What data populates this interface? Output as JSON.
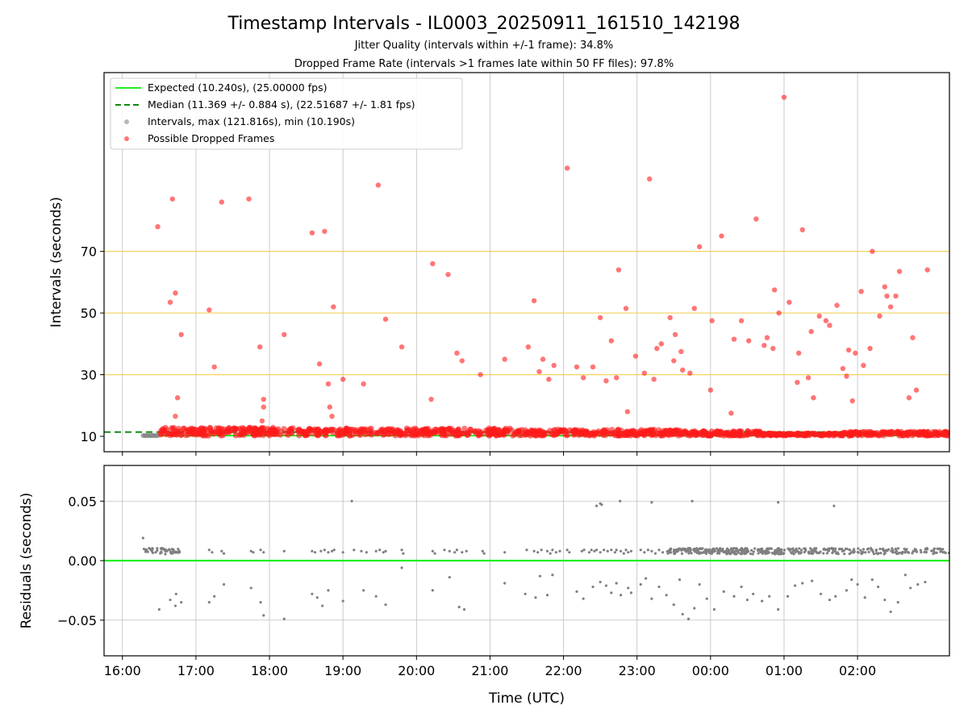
{
  "figure": {
    "title": "Timestamp Intervals - IL0003_20250911_161510_142198",
    "subtitle1": "Jitter Quality (intervals within +/-1 frame): 34.8%",
    "subtitle2": "Dropped Frame Rate (intervals >1 frames late within 50 FF files): 97.8%"
  },
  "chart_data": [
    {
      "type": "scatter",
      "ylabel": "Intervals (seconds)",
      "xlabel": "",
      "x_unit": "hours since 16:00 UTC (2025-09-11)",
      "xlim": [
        -0.25,
        11.25
      ],
      "ylim": [
        5,
        128
      ],
      "yticks": [
        10,
        30,
        50,
        70
      ],
      "highlight_lines": [
        30,
        50,
        70
      ],
      "highlight_color": "#f5c842",
      "grid": true,
      "legend_position": "top-left",
      "legend": [
        "Expected (10.240s), (25.00000 fps)",
        "Median (11.369 +/- 0.884 s), (22.51687 +/- 1.81 fps)",
        "Intervals, max (121.816s), min (10.190s)",
        "Possible Dropped Frames"
      ],
      "expected": 10.24,
      "median": 11.369,
      "colors": {
        "expected": "#22ee22",
        "median": "#118811",
        "interval": "#888888",
        "dropped": "#ff1a1a"
      },
      "band": {
        "segments": [
          {
            "x": [
              0.5,
              2.45
            ],
            "y": 12.0
          },
          {
            "x": [
              2.45,
              5.3
            ],
            "y": 11.8
          },
          {
            "x": [
              5.3,
              7.6
            ],
            "y": 11.4
          },
          {
            "x": [
              7.6,
              8.7
            ],
            "y": 10.9
          },
          {
            "x": [
              8.7,
              9.8
            ],
            "y": 10.2
          },
          {
            "x": [
              9.8,
              11.25
            ],
            "y": 10.7
          }
        ]
      },
      "dropped_points": [
        [
          0.48,
          78.0
        ],
        [
          0.65,
          53.5
        ],
        [
          0.68,
          87.0
        ],
        [
          0.72,
          56.5
        ],
        [
          0.72,
          16.5
        ],
        [
          0.75,
          22.5
        ],
        [
          0.8,
          43.0
        ],
        [
          1.18,
          51.0
        ],
        [
          1.25,
          32.5
        ],
        [
          1.35,
          86.0
        ],
        [
          1.72,
          87.0
        ],
        [
          1.87,
          39.0
        ],
        [
          1.9,
          15.0
        ],
        [
          1.92,
          22.0
        ],
        [
          1.92,
          19.5
        ],
        [
          2.2,
          43.0
        ],
        [
          2.58,
          76.0
        ],
        [
          2.68,
          33.5
        ],
        [
          2.75,
          76.5
        ],
        [
          2.8,
          27.0
        ],
        [
          2.82,
          19.5
        ],
        [
          2.85,
          16.5
        ],
        [
          2.87,
          52.0
        ],
        [
          3.0,
          28.5
        ],
        [
          3.28,
          27.0
        ],
        [
          3.48,
          91.5
        ],
        [
          3.58,
          48.0
        ],
        [
          3.8,
          39.0
        ],
        [
          4.2,
          22.0
        ],
        [
          4.22,
          66.0
        ],
        [
          4.43,
          62.5
        ],
        [
          4.55,
          37.0
        ],
        [
          4.62,
          34.5
        ],
        [
          4.87,
          30.0
        ],
        [
          5.2,
          35.0
        ],
        [
          5.52,
          39.0
        ],
        [
          5.6,
          54.0
        ],
        [
          5.67,
          31.0
        ],
        [
          5.72,
          35.0
        ],
        [
          5.8,
          28.5
        ],
        [
          5.87,
          33.0
        ],
        [
          6.05,
          97.0
        ],
        [
          6.18,
          32.5
        ],
        [
          6.27,
          29.0
        ],
        [
          6.4,
          32.5
        ],
        [
          6.5,
          48.5
        ],
        [
          6.58,
          28.0
        ],
        [
          6.65,
          41.0
        ],
        [
          6.72,
          29.0
        ],
        [
          6.75,
          64.0
        ],
        [
          6.85,
          51.5
        ],
        [
          6.87,
          18.0
        ],
        [
          6.98,
          36.0
        ],
        [
          7.1,
          30.5
        ],
        [
          7.17,
          93.5
        ],
        [
          7.23,
          28.5
        ],
        [
          7.27,
          38.5
        ],
        [
          7.33,
          40.0
        ],
        [
          7.45,
          48.5
        ],
        [
          7.5,
          34.5
        ],
        [
          7.52,
          43.0
        ],
        [
          7.6,
          37.5
        ],
        [
          7.62,
          31.5
        ],
        [
          7.72,
          30.5
        ],
        [
          7.78,
          51.5
        ],
        [
          7.85,
          71.5
        ],
        [
          8.0,
          25.0
        ],
        [
          8.02,
          47.5
        ],
        [
          8.15,
          75.0
        ],
        [
          8.28,
          17.5
        ],
        [
          8.32,
          41.5
        ],
        [
          8.42,
          47.5
        ],
        [
          8.52,
          41.0
        ],
        [
          8.62,
          80.5
        ],
        [
          8.73,
          39.5
        ],
        [
          8.77,
          42.0
        ],
        [
          8.85,
          38.5
        ],
        [
          8.87,
          57.5
        ],
        [
          8.93,
          50.0
        ],
        [
          9.0,
          120.0
        ],
        [
          9.07,
          53.5
        ],
        [
          9.18,
          27.5
        ],
        [
          9.2,
          37.0
        ],
        [
          9.25,
          77.0
        ],
        [
          9.33,
          29.0
        ],
        [
          9.37,
          44.0
        ],
        [
          9.4,
          22.5
        ],
        [
          9.48,
          49.0
        ],
        [
          9.57,
          47.5
        ],
        [
          9.62,
          46.0
        ],
        [
          9.72,
          52.5
        ],
        [
          9.8,
          32.0
        ],
        [
          9.85,
          29.5
        ],
        [
          9.88,
          38.0
        ],
        [
          9.93,
          21.5
        ],
        [
          9.97,
          37.0
        ],
        [
          10.05,
          57.0
        ],
        [
          10.08,
          33.0
        ],
        [
          10.17,
          38.5
        ],
        [
          10.2,
          70.0
        ],
        [
          10.3,
          49.0
        ],
        [
          10.37,
          58.5
        ],
        [
          10.4,
          55.5
        ],
        [
          10.45,
          52.0
        ],
        [
          10.52,
          55.5
        ],
        [
          10.57,
          63.5
        ],
        [
          10.7,
          22.5
        ],
        [
          10.75,
          42.0
        ],
        [
          10.8,
          25.0
        ],
        [
          10.95,
          64.0
        ]
      ]
    },
    {
      "type": "scatter",
      "ylabel": "Residuals (seconds)",
      "xlabel": "Time (UTC)",
      "xlim": [
        -0.25,
        11.25
      ],
      "ylim": [
        -0.08,
        0.08
      ],
      "yticks": [
        0.05,
        0.0,
        -0.05
      ],
      "ytick_labels": [
        "0.05",
        "0.00",
        "−0.05"
      ],
      "xticks": [
        0,
        1,
        2,
        3,
        4,
        5,
        6,
        7,
        8,
        9,
        10
      ],
      "xtick_labels": [
        "16:00",
        "17:00",
        "18:00",
        "19:00",
        "20:00",
        "21:00",
        "22:00",
        "23:00",
        "00:00",
        "01:00",
        "02:00"
      ],
      "zero_line": 0.0,
      "grid": true,
      "dense_clusters": [
        {
          "x": [
            0.28,
            0.78
          ],
          "y": 0.008,
          "count": 55
        },
        {
          "x": [
            7.4,
            9.0
          ],
          "y": 0.008,
          "count": 260
        },
        {
          "x": [
            9.0,
            11.25
          ],
          "y": 0.008,
          "count": 180
        }
      ],
      "sparse_high": [
        [
          1.18,
          0.009
        ],
        [
          1.22,
          0.007
        ],
        [
          1.35,
          0.008
        ],
        [
          1.38,
          0.006
        ],
        [
          1.75,
          0.008
        ],
        [
          1.78,
          0.007
        ],
        [
          1.88,
          0.009
        ],
        [
          1.92,
          0.007
        ],
        [
          2.2,
          0.008
        ],
        [
          2.58,
          0.008
        ],
        [
          2.62,
          0.007
        ],
        [
          2.7,
          0.008
        ],
        [
          2.75,
          0.009
        ],
        [
          2.8,
          0.007
        ],
        [
          2.85,
          0.008
        ],
        [
          2.88,
          0.009
        ],
        [
          3.0,
          0.007
        ],
        [
          3.15,
          0.009
        ],
        [
          3.25,
          0.008
        ],
        [
          3.32,
          0.007
        ],
        [
          3.45,
          0.008
        ],
        [
          3.5,
          0.009
        ],
        [
          3.55,
          0.007
        ],
        [
          3.58,
          0.008
        ],
        [
          3.8,
          0.009
        ],
        [
          3.82,
          0.006
        ],
        [
          4.22,
          0.008
        ],
        [
          4.25,
          0.006
        ],
        [
          4.38,
          0.009
        ],
        [
          4.45,
          0.008
        ],
        [
          4.52,
          0.007
        ],
        [
          4.55,
          0.009
        ],
        [
          4.62,
          0.007
        ],
        [
          4.68,
          0.008
        ],
        [
          4.9,
          0.008
        ],
        [
          4.92,
          0.006
        ],
        [
          5.2,
          0.007
        ],
        [
          5.5,
          0.009
        ],
        [
          5.6,
          0.008
        ],
        [
          5.65,
          0.007
        ],
        [
          5.7,
          0.009
        ],
        [
          5.78,
          0.008
        ],
        [
          5.82,
          0.006
        ],
        [
          5.85,
          0.009
        ],
        [
          5.9,
          0.007
        ],
        [
          5.95,
          0.008
        ],
        [
          6.05,
          0.009
        ],
        [
          6.08,
          0.007
        ],
        [
          6.25,
          0.008
        ],
        [
          6.28,
          0.009
        ],
        [
          6.35,
          0.007
        ],
        [
          6.38,
          0.009
        ],
        [
          6.42,
          0.008
        ],
        [
          6.45,
          0.009
        ],
        [
          6.5,
          0.007
        ],
        [
          6.55,
          0.009
        ],
        [
          6.6,
          0.008
        ],
        [
          6.65,
          0.009
        ],
        [
          6.7,
          0.007
        ],
        [
          6.72,
          0.009
        ],
        [
          6.78,
          0.008
        ],
        [
          6.82,
          0.006
        ],
        [
          6.85,
          0.009
        ],
        [
          6.88,
          0.007
        ],
        [
          6.92,
          0.008
        ],
        [
          7.05,
          0.009
        ],
        [
          7.1,
          0.007
        ],
        [
          7.15,
          0.009
        ],
        [
          7.2,
          0.008
        ],
        [
          7.25,
          0.006
        ],
        [
          7.3,
          0.009
        ],
        [
          7.35,
          0.007
        ]
      ],
      "sparse_low": [
        [
          0.28,
          0.019
        ],
        [
          0.5,
          -0.041
        ],
        [
          0.65,
          -0.033
        ],
        [
          0.72,
          -0.038
        ],
        [
          0.73,
          -0.028
        ],
        [
          0.8,
          -0.035
        ],
        [
          1.18,
          -0.035
        ],
        [
          1.25,
          -0.03
        ],
        [
          1.38,
          -0.02
        ],
        [
          1.75,
          -0.023
        ],
        [
          1.88,
          -0.035
        ],
        [
          1.92,
          -0.046
        ],
        [
          2.2,
          -0.049
        ],
        [
          2.58,
          -0.028
        ],
        [
          2.65,
          -0.031
        ],
        [
          2.72,
          -0.038
        ],
        [
          2.8,
          -0.025
        ],
        [
          3.0,
          -0.034
        ],
        [
          3.28,
          -0.025
        ],
        [
          3.45,
          -0.03
        ],
        [
          3.58,
          -0.037
        ],
        [
          3.8,
          -0.006
        ],
        [
          4.22,
          -0.025
        ],
        [
          4.45,
          -0.014
        ],
        [
          4.58,
          -0.039
        ],
        [
          4.65,
          -0.041
        ],
        [
          5.2,
          -0.019
        ],
        [
          5.48,
          -0.028
        ],
        [
          5.62,
          -0.031
        ],
        [
          5.68,
          -0.013
        ],
        [
          5.78,
          -0.029
        ],
        [
          5.85,
          -0.012
        ],
        [
          6.18,
          -0.026
        ],
        [
          6.27,
          -0.032
        ],
        [
          6.4,
          -0.022
        ],
        [
          6.5,
          -0.018
        ],
        [
          6.58,
          -0.021
        ],
        [
          6.65,
          -0.027
        ],
        [
          6.72,
          -0.019
        ],
        [
          6.78,
          -0.029
        ],
        [
          6.88,
          -0.023
        ],
        [
          6.92,
          -0.027
        ],
        [
          7.05,
          -0.02
        ],
        [
          7.12,
          -0.015
        ],
        [
          7.2,
          -0.032
        ],
        [
          7.3,
          -0.022
        ],
        [
          7.4,
          -0.029
        ],
        [
          7.5,
          -0.037
        ],
        [
          7.58,
          -0.016
        ],
        [
          7.62,
          -0.045
        ],
        [
          7.7,
          -0.049
        ],
        [
          7.78,
          -0.04
        ],
        [
          7.85,
          -0.02
        ],
        [
          7.95,
          -0.032
        ],
        [
          8.05,
          -0.041
        ],
        [
          8.18,
          -0.026
        ],
        [
          8.32,
          -0.03
        ],
        [
          8.42,
          -0.022
        ],
        [
          8.5,
          -0.033
        ],
        [
          8.58,
          -0.028
        ],
        [
          8.7,
          -0.034
        ],
        [
          8.8,
          -0.03
        ],
        [
          8.92,
          -0.041
        ],
        [
          9.05,
          -0.03
        ],
        [
          9.15,
          -0.021
        ],
        [
          9.25,
          -0.019
        ],
        [
          9.38,
          -0.017
        ],
        [
          9.5,
          -0.028
        ],
        [
          9.62,
          -0.033
        ],
        [
          9.7,
          -0.03
        ],
        [
          9.85,
          -0.025
        ],
        [
          9.92,
          -0.016
        ],
        [
          10.0,
          -0.02
        ],
        [
          10.1,
          -0.031
        ],
        [
          10.2,
          -0.016
        ],
        [
          10.28,
          -0.022
        ],
        [
          10.37,
          -0.033
        ],
        [
          10.45,
          -0.043
        ],
        [
          10.55,
          -0.035
        ],
        [
          10.65,
          -0.012
        ],
        [
          10.72,
          -0.023
        ],
        [
          10.82,
          -0.02
        ],
        [
          10.92,
          -0.018
        ],
        [
          6.45,
          0.046
        ],
        [
          6.5,
          0.048
        ],
        [
          6.52,
          0.047
        ],
        [
          6.77,
          0.05
        ],
        [
          7.2,
          0.049
        ],
        [
          7.75,
          0.05
        ],
        [
          3.12,
          0.05
        ],
        [
          8.92,
          0.049
        ],
        [
          9.68,
          0.046
        ]
      ]
    }
  ]
}
